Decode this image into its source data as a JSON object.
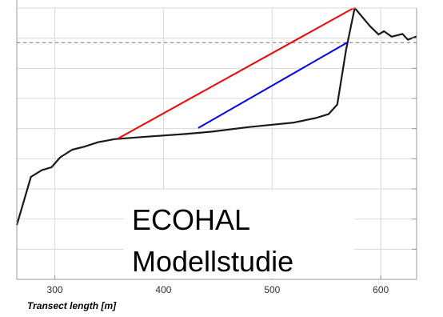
{
  "chart_data": {
    "type": "line",
    "title": "",
    "xlabel": "Transect length [m]",
    "ylabel": "",
    "xlim": [
      265,
      633
    ],
    "ylim": [
      0,
      9
    ],
    "x_ticks": [
      300,
      400,
      500,
      600
    ],
    "y_ticks": [
      1,
      2,
      3,
      4,
      5,
      6,
      7,
      8
    ],
    "y_tick_labels_visible": false,
    "grid": true,
    "legend": "none",
    "reference_level_dashed": 7.85,
    "series": [
      {
        "color": "#1a1a1a",
        "style": "solid",
        "points": [
          [
            265,
            1.8
          ],
          [
            278,
            3.4
          ],
          [
            288,
            3.62
          ],
          [
            297,
            3.72
          ],
          [
            305,
            4.05
          ],
          [
            316,
            4.3
          ],
          [
            327,
            4.4
          ],
          [
            340,
            4.55
          ],
          [
            355,
            4.65
          ],
          [
            380,
            4.72
          ],
          [
            420,
            4.82
          ],
          [
            445,
            4.9
          ],
          [
            478,
            5.05
          ],
          [
            500,
            5.13
          ],
          [
            520,
            5.2
          ],
          [
            540,
            5.35
          ],
          [
            552,
            5.48
          ],
          [
            560,
            5.8
          ],
          [
            568,
            7.6
          ],
          [
            576,
            9.0
          ],
          [
            590,
            8.4
          ],
          [
            598,
            8.12
          ],
          [
            603,
            8.23
          ],
          [
            610,
            8.05
          ],
          [
            620,
            8.14
          ],
          [
            625,
            7.95
          ],
          [
            633,
            8.06
          ]
        ]
      },
      {
        "color": "#ff0000",
        "style": "solid",
        "points": [
          [
            358,
            4.67
          ],
          [
            575,
            9.0
          ]
        ]
      },
      {
        "color": "#0000ff",
        "style": "solid",
        "points": [
          [
            432,
            5.02
          ],
          [
            569,
            7.85
          ]
        ]
      }
    ]
  },
  "overlay": {
    "line1": "ECOHAL",
    "line2": "Modellstudie"
  },
  "colors": {
    "grid": "#d9d9d9",
    "axes": "#999999",
    "dashed": "#808080",
    "overlay_bg": "#ffffff",
    "text": "#000000"
  }
}
